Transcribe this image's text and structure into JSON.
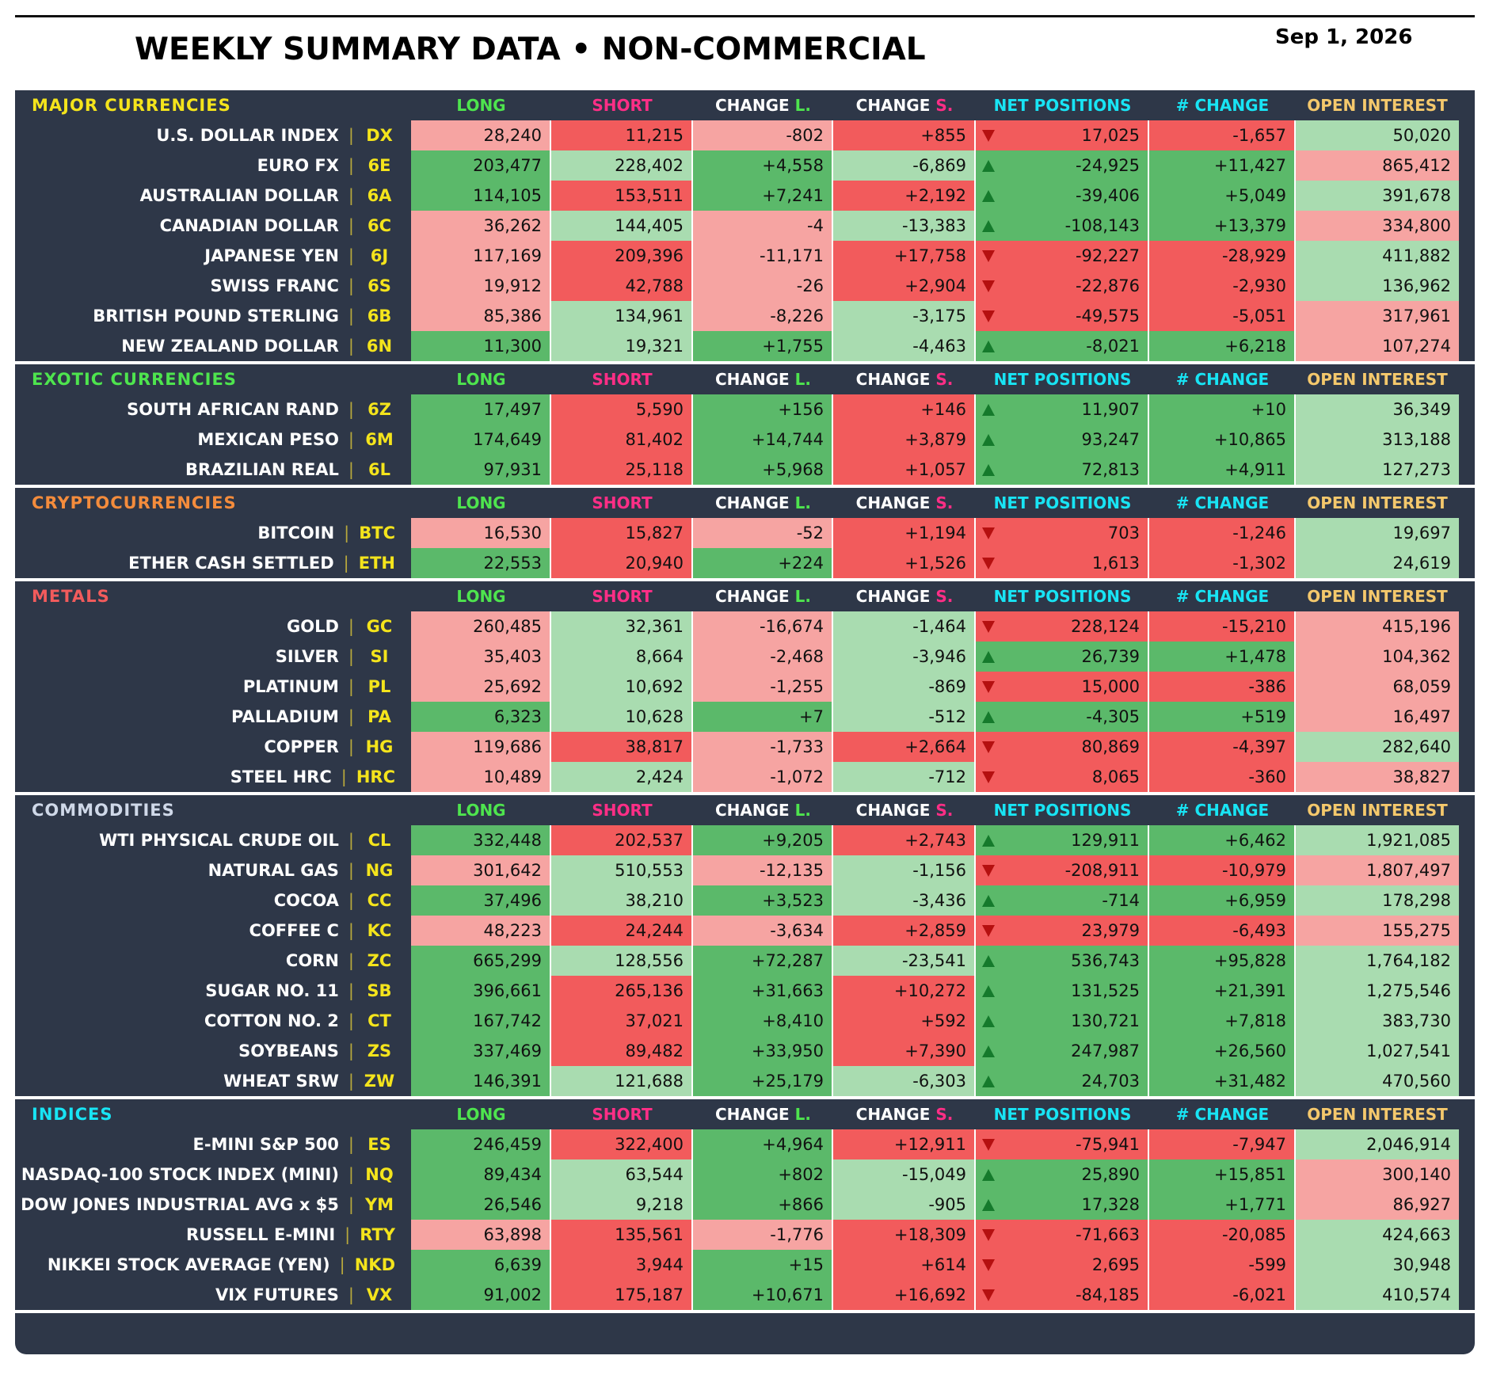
{
  "title": "WEEKLY SUMMARY DATA • NON-COMMERCIAL",
  "date": "Sep 1, 2026",
  "columns": {
    "long": "LONG",
    "short": "SHORT",
    "change_l": "CHANGE L.",
    "change_s": "CHANGE S.",
    "net": "NET POSITIONS",
    "num_change": "# CHANGE",
    "oi": "OPEN INTEREST"
  },
  "colors": {
    "pink": "#f6a4a2",
    "red": "#f25b5c",
    "light_green": "#a9dcb0",
    "green": "#5bb96a",
    "panel": "#2e3748",
    "long_header": "#4ee44e",
    "short_header": "#ff2e86",
    "net_header": "#18e4f4",
    "oi_header": "#f4c86c",
    "code": "#f4e41c"
  },
  "sections": [
    {
      "name": "MAJOR CURRENCIES",
      "name_color": "#f4e41c",
      "rows": [
        {
          "name": "U.S. DOLLAR INDEX",
          "code": "DX",
          "long": "28,240",
          "short": "11,215",
          "chg_l": "-802",
          "chg_s": "+855",
          "trend": "down",
          "net": "17,025",
          "num_chg": "-1,657",
          "oi": "50,020",
          "colors": [
            "pk",
            "rd",
            "pk",
            "rd",
            "rd",
            "rd",
            "lg"
          ]
        },
        {
          "name": "EURO FX",
          "code": "6E",
          "long": "203,477",
          "short": "228,402",
          "chg_l": "+4,558",
          "chg_s": "-6,869",
          "trend": "up",
          "net": "-24,925",
          "num_chg": "+11,427",
          "oi": "865,412",
          "colors": [
            "gr",
            "lg",
            "gr",
            "lg",
            "gr",
            "gr",
            "pk"
          ]
        },
        {
          "name": "AUSTRALIAN DOLLAR",
          "code": "6A",
          "long": "114,105",
          "short": "153,511",
          "chg_l": "+7,241",
          "chg_s": "+2,192",
          "trend": "up",
          "net": "-39,406",
          "num_chg": "+5,049",
          "oi": "391,678",
          "colors": [
            "gr",
            "rd",
            "gr",
            "rd",
            "gr",
            "gr",
            "lg"
          ]
        },
        {
          "name": "CANADIAN DOLLAR",
          "code": "6C",
          "long": "36,262",
          "short": "144,405",
          "chg_l": "-4",
          "chg_s": "-13,383",
          "trend": "up",
          "net": "-108,143",
          "num_chg": "+13,379",
          "oi": "334,800",
          "colors": [
            "pk",
            "lg",
            "pk",
            "lg",
            "gr",
            "gr",
            "pk"
          ]
        },
        {
          "name": "JAPANESE YEN",
          "code": "6J",
          "long": "117,169",
          "short": "209,396",
          "chg_l": "-11,171",
          "chg_s": "+17,758",
          "trend": "down",
          "net": "-92,227",
          "num_chg": "-28,929",
          "oi": "411,882",
          "colors": [
            "pk",
            "rd",
            "pk",
            "rd",
            "rd",
            "rd",
            "lg"
          ]
        },
        {
          "name": "SWISS FRANC",
          "code": "6S",
          "long": "19,912",
          "short": "42,788",
          "chg_l": "-26",
          "chg_s": "+2,904",
          "trend": "down",
          "net": "-22,876",
          "num_chg": "-2,930",
          "oi": "136,962",
          "colors": [
            "pk",
            "rd",
            "pk",
            "rd",
            "rd",
            "rd",
            "lg"
          ]
        },
        {
          "name": "BRITISH POUND STERLING",
          "code": "6B",
          "long": "85,386",
          "short": "134,961",
          "chg_l": "-8,226",
          "chg_s": "-3,175",
          "trend": "down",
          "net": "-49,575",
          "num_chg": "-5,051",
          "oi": "317,961",
          "colors": [
            "pk",
            "lg",
            "pk",
            "lg",
            "rd",
            "rd",
            "pk"
          ]
        },
        {
          "name": "NEW ZEALAND DOLLAR",
          "code": "6N",
          "long": "11,300",
          "short": "19,321",
          "chg_l": "+1,755",
          "chg_s": "-4,463",
          "trend": "up",
          "net": "-8,021",
          "num_chg": "+6,218",
          "oi": "107,274",
          "colors": [
            "gr",
            "lg",
            "gr",
            "lg",
            "gr",
            "gr",
            "pk"
          ]
        }
      ]
    },
    {
      "name": "EXOTIC CURRENCIES",
      "name_color": "#4ee44e",
      "rows": [
        {
          "name": "SOUTH AFRICAN RAND",
          "code": "6Z",
          "long": "17,497",
          "short": "5,590",
          "chg_l": "+156",
          "chg_s": "+146",
          "trend": "up",
          "net": "11,907",
          "num_chg": "+10",
          "oi": "36,349",
          "colors": [
            "gr",
            "rd",
            "gr",
            "rd",
            "gr",
            "gr",
            "lg"
          ]
        },
        {
          "name": "MEXICAN PESO",
          "code": "6M",
          "long": "174,649",
          "short": "81,402",
          "chg_l": "+14,744",
          "chg_s": "+3,879",
          "trend": "up",
          "net": "93,247",
          "num_chg": "+10,865",
          "oi": "313,188",
          "colors": [
            "gr",
            "rd",
            "gr",
            "rd",
            "gr",
            "gr",
            "lg"
          ]
        },
        {
          "name": "BRAZILIAN REAL",
          "code": "6L",
          "long": "97,931",
          "short": "25,118",
          "chg_l": "+5,968",
          "chg_s": "+1,057",
          "trend": "up",
          "net": "72,813",
          "num_chg": "+4,911",
          "oi": "127,273",
          "colors": [
            "gr",
            "rd",
            "gr",
            "rd",
            "gr",
            "gr",
            "lg"
          ]
        }
      ]
    },
    {
      "name": "CRYPTOCURRENCIES",
      "name_color": "#f48c3c",
      "rows": [
        {
          "name": "BITCOIN",
          "code": "BTC",
          "long": "16,530",
          "short": "15,827",
          "chg_l": "-52",
          "chg_s": "+1,194",
          "trend": "down",
          "net": "703",
          "num_chg": "-1,246",
          "oi": "19,697",
          "colors": [
            "pk",
            "rd",
            "pk",
            "rd",
            "rd",
            "rd",
            "lg"
          ]
        },
        {
          "name": "ETHER CASH SETTLED",
          "code": "ETH",
          "long": "22,553",
          "short": "20,940",
          "chg_l": "+224",
          "chg_s": "+1,526",
          "trend": "down",
          "net": "1,613",
          "num_chg": "-1,302",
          "oi": "24,619",
          "colors": [
            "gr",
            "rd",
            "gr",
            "rd",
            "rd",
            "rd",
            "lg"
          ]
        }
      ]
    },
    {
      "name": "METALS",
      "name_color": "#f25b5c",
      "rows": [
        {
          "name": "GOLD",
          "code": "GC",
          "long": "260,485",
          "short": "32,361",
          "chg_l": "-16,674",
          "chg_s": "-1,464",
          "trend": "down",
          "net": "228,124",
          "num_chg": "-15,210",
          "oi": "415,196",
          "colors": [
            "pk",
            "lg",
            "pk",
            "lg",
            "rd",
            "rd",
            "pk"
          ]
        },
        {
          "name": "SILVER",
          "code": "SI",
          "long": "35,403",
          "short": "8,664",
          "chg_l": "-2,468",
          "chg_s": "-3,946",
          "trend": "up",
          "net": "26,739",
          "num_chg": "+1,478",
          "oi": "104,362",
          "colors": [
            "pk",
            "lg",
            "pk",
            "lg",
            "gr",
            "gr",
            "pk"
          ]
        },
        {
          "name": "PLATINUM",
          "code": "PL",
          "long": "25,692",
          "short": "10,692",
          "chg_l": "-1,255",
          "chg_s": "-869",
          "trend": "down",
          "net": "15,000",
          "num_chg": "-386",
          "oi": "68,059",
          "colors": [
            "pk",
            "lg",
            "pk",
            "lg",
            "rd",
            "rd",
            "pk"
          ]
        },
        {
          "name": "PALLADIUM",
          "code": "PA",
          "long": "6,323",
          "short": "10,628",
          "chg_l": "+7",
          "chg_s": "-512",
          "trend": "up",
          "net": "-4,305",
          "num_chg": "+519",
          "oi": "16,497",
          "colors": [
            "gr",
            "lg",
            "gr",
            "lg",
            "gr",
            "gr",
            "pk"
          ]
        },
        {
          "name": "COPPER",
          "code": "HG",
          "long": "119,686",
          "short": "38,817",
          "chg_l": "-1,733",
          "chg_s": "+2,664",
          "trend": "down",
          "net": "80,869",
          "num_chg": "-4,397",
          "oi": "282,640",
          "colors": [
            "pk",
            "rd",
            "pk",
            "rd",
            "rd",
            "rd",
            "lg"
          ]
        },
        {
          "name": "STEEL HRC",
          "code": "HRC",
          "long": "10,489",
          "short": "2,424",
          "chg_l": "-1,072",
          "chg_s": "-712",
          "trend": "down",
          "net": "8,065",
          "num_chg": "-360",
          "oi": "38,827",
          "colors": [
            "pk",
            "lg",
            "pk",
            "lg",
            "rd",
            "rd",
            "pk"
          ]
        }
      ]
    },
    {
      "name": "COMMODITIES",
      "name_color": "#cfd8e8",
      "rows": [
        {
          "name": "WTI PHYSICAL CRUDE OIL",
          "code": "CL",
          "long": "332,448",
          "short": "202,537",
          "chg_l": "+9,205",
          "chg_s": "+2,743",
          "trend": "up",
          "net": "129,911",
          "num_chg": "+6,462",
          "oi": "1,921,085",
          "colors": [
            "gr",
            "rd",
            "gr",
            "rd",
            "gr",
            "gr",
            "lg"
          ]
        },
        {
          "name": "NATURAL GAS",
          "code": "NG",
          "long": "301,642",
          "short": "510,553",
          "chg_l": "-12,135",
          "chg_s": "-1,156",
          "trend": "down",
          "net": "-208,911",
          "num_chg": "-10,979",
          "oi": "1,807,497",
          "colors": [
            "pk",
            "lg",
            "pk",
            "lg",
            "rd",
            "rd",
            "pk"
          ]
        },
        {
          "name": "COCOA",
          "code": "CC",
          "long": "37,496",
          "short": "38,210",
          "chg_l": "+3,523",
          "chg_s": "-3,436",
          "trend": "up",
          "net": "-714",
          "num_chg": "+6,959",
          "oi": "178,298",
          "colors": [
            "gr",
            "lg",
            "gr",
            "lg",
            "gr",
            "gr",
            "lg"
          ]
        },
        {
          "name": "COFFEE C",
          "code": "KC",
          "long": "48,223",
          "short": "24,244",
          "chg_l": "-3,634",
          "chg_s": "+2,859",
          "trend": "down",
          "net": "23,979",
          "num_chg": "-6,493",
          "oi": "155,275",
          "colors": [
            "pk",
            "rd",
            "pk",
            "rd",
            "rd",
            "rd",
            "pk"
          ]
        },
        {
          "name": "CORN",
          "code": "ZC",
          "long": "665,299",
          "short": "128,556",
          "chg_l": "+72,287",
          "chg_s": "-23,541",
          "trend": "up",
          "net": "536,743",
          "num_chg": "+95,828",
          "oi": "1,764,182",
          "colors": [
            "gr",
            "lg",
            "gr",
            "lg",
            "gr",
            "gr",
            "lg"
          ]
        },
        {
          "name": "SUGAR NO. 11",
          "code": "SB",
          "long": "396,661",
          "short": "265,136",
          "chg_l": "+31,663",
          "chg_s": "+10,272",
          "trend": "up",
          "net": "131,525",
          "num_chg": "+21,391",
          "oi": "1,275,546",
          "colors": [
            "gr",
            "rd",
            "gr",
            "rd",
            "gr",
            "gr",
            "lg"
          ]
        },
        {
          "name": "COTTON NO. 2",
          "code": "CT",
          "long": "167,742",
          "short": "37,021",
          "chg_l": "+8,410",
          "chg_s": "+592",
          "trend": "up",
          "net": "130,721",
          "num_chg": "+7,818",
          "oi": "383,730",
          "colors": [
            "gr",
            "rd",
            "gr",
            "rd",
            "gr",
            "gr",
            "lg"
          ]
        },
        {
          "name": "SOYBEANS",
          "code": "ZS",
          "long": "337,469",
          "short": "89,482",
          "chg_l": "+33,950",
          "chg_s": "+7,390",
          "trend": "up",
          "net": "247,987",
          "num_chg": "+26,560",
          "oi": "1,027,541",
          "colors": [
            "gr",
            "rd",
            "gr",
            "rd",
            "gr",
            "gr",
            "lg"
          ]
        },
        {
          "name": "WHEAT SRW",
          "code": "ZW",
          "long": "146,391",
          "short": "121,688",
          "chg_l": "+25,179",
          "chg_s": "-6,303",
          "trend": "up",
          "net": "24,703",
          "num_chg": "+31,482",
          "oi": "470,560",
          "colors": [
            "gr",
            "lg",
            "gr",
            "lg",
            "gr",
            "gr",
            "lg"
          ]
        }
      ]
    },
    {
      "name": "INDICES",
      "name_color": "#18e4f4",
      "rows": [
        {
          "name": "E-MINI S&P 500",
          "code": "ES",
          "long": "246,459",
          "short": "322,400",
          "chg_l": "+4,964",
          "chg_s": "+12,911",
          "trend": "down",
          "net": "-75,941",
          "num_chg": "-7,947",
          "oi": "2,046,914",
          "colors": [
            "gr",
            "rd",
            "gr",
            "rd",
            "rd",
            "rd",
            "lg"
          ]
        },
        {
          "name": "NASDAQ-100 STOCK INDEX (MINI)",
          "code": "NQ",
          "long": "89,434",
          "short": "63,544",
          "chg_l": "+802",
          "chg_s": "-15,049",
          "trend": "up",
          "net": "25,890",
          "num_chg": "+15,851",
          "oi": "300,140",
          "colors": [
            "gr",
            "lg",
            "gr",
            "lg",
            "gr",
            "gr",
            "pk"
          ]
        },
        {
          "name": "DOW JONES INDUSTRIAL AVG x $5",
          "code": "YM",
          "long": "26,546",
          "short": "9,218",
          "chg_l": "+866",
          "chg_s": "-905",
          "trend": "up",
          "net": "17,328",
          "num_chg": "+1,771",
          "oi": "86,927",
          "colors": [
            "gr",
            "lg",
            "gr",
            "lg",
            "gr",
            "gr",
            "pk"
          ]
        },
        {
          "name": "RUSSELL E-MINI",
          "code": "RTY",
          "long": "63,898",
          "short": "135,561",
          "chg_l": "-1,776",
          "chg_s": "+18,309",
          "trend": "down",
          "net": "-71,663",
          "num_chg": "-20,085",
          "oi": "424,663",
          "colors": [
            "pk",
            "rd",
            "pk",
            "rd",
            "rd",
            "rd",
            "lg"
          ]
        },
        {
          "name": "NIKKEI STOCK AVERAGE (YEN)",
          "code": "NKD",
          "long": "6,639",
          "short": "3,944",
          "chg_l": "+15",
          "chg_s": "+614",
          "trend": "down",
          "net": "2,695",
          "num_chg": "-599",
          "oi": "30,948",
          "colors": [
            "gr",
            "rd",
            "gr",
            "rd",
            "rd",
            "rd",
            "lg"
          ]
        },
        {
          "name": "VIX FUTURES",
          "code": "VX",
          "long": "91,002",
          "short": "175,187",
          "chg_l": "+10,671",
          "chg_s": "+16,692",
          "trend": "down",
          "net": "-84,185",
          "num_chg": "-6,021",
          "oi": "410,574",
          "colors": [
            "gr",
            "rd",
            "gr",
            "rd",
            "rd",
            "rd",
            "lg"
          ]
        }
      ]
    }
  ]
}
